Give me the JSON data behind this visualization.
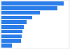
{
  "values": [
    100,
    90,
    62,
    50,
    40,
    36,
    34,
    33,
    32,
    17
  ],
  "bar_color": "#2b7de9",
  "background_color": "#f2f2f2",
  "plot_bg_color": "#ffffff",
  "grid_color": "#cccccc",
  "ylim": [
    -0.55,
    9.55
  ],
  "xlim": [
    0,
    108
  ]
}
